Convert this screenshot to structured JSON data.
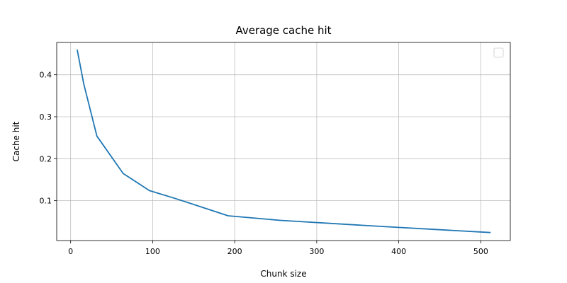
{
  "chart_data": {
    "type": "line",
    "title": "Average cache hit",
    "xlabel": "Chunk size",
    "ylabel": "Cache hit",
    "xlim": [
      -17,
      536
    ],
    "ylim": [
      0.005,
      0.477
    ],
    "xticks": [
      0,
      100,
      200,
      300,
      400,
      500
    ],
    "yticks": [
      0.1,
      0.2,
      0.3,
      0.4
    ],
    "grid": true,
    "legend": {
      "position": "top-right",
      "entries": []
    },
    "series": [
      {
        "color": "#1f77b4",
        "x": [
          8,
          16,
          32,
          64,
          96,
          128,
          192,
          256,
          384,
          512
        ],
        "y": [
          0.46,
          0.378,
          0.254,
          0.165,
          0.124,
          0.105,
          0.064,
          0.053,
          0.038,
          0.024
        ]
      }
    ]
  }
}
